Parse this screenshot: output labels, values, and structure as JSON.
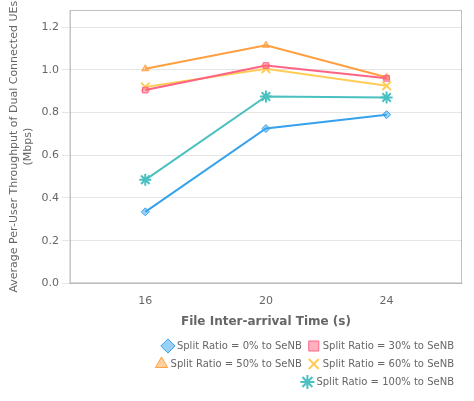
{
  "chart_data": {
    "type": "line",
    "x": [
      16,
      20,
      24
    ],
    "series": [
      {
        "name": "Split Ratio = 0% to SeNB",
        "values": [
          0.335,
          0.725,
          0.79
        ],
        "marker": "diamond"
      },
      {
        "name": "Split Ratio = 30% to SeNB",
        "values": [
          0.905,
          1.02,
          0.96
        ],
        "marker": "square"
      },
      {
        "name": "Split Ratio = 50% to SeNB",
        "values": [
          1.005,
          1.115,
          0.965
        ],
        "marker": "triangle"
      },
      {
        "name": "Split Ratio = 60% to SeNB",
        "values": [
          0.92,
          1.005,
          0.925
        ],
        "marker": "x"
      },
      {
        "name": "Split Ratio = 100% to SeNB",
        "values": [
          0.485,
          0.875,
          0.87
        ],
        "marker": "star"
      }
    ],
    "xlabel": "File Inter-arrival Time (s)",
    "ylabel": "Average Per-User Throughput of Dual Connected UEs\n(Mbps)",
    "xlim": [
      13.5,
      26.5
    ],
    "xticks": [
      16,
      20,
      24
    ],
    "ylim": [
      0,
      1.28
    ],
    "yticks": [
      {
        "value": 0,
        "label": "0.0"
      },
      0.2,
      0.4,
      0.6,
      0.8,
      {
        "value": 1.0,
        "label": "1.0"
      },
      1.2
    ],
    "grid": "y",
    "legend": "lower right"
  }
}
